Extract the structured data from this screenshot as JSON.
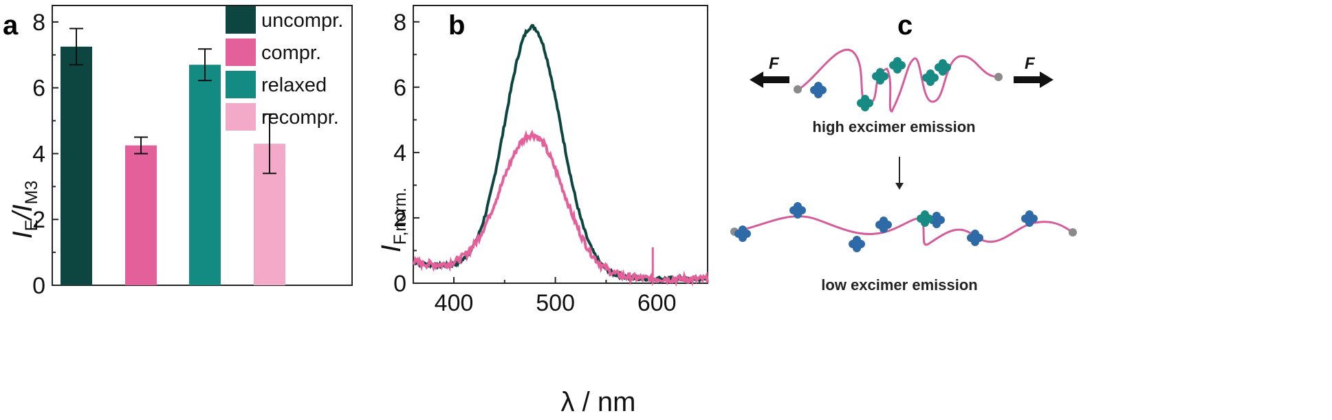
{
  "panels": {
    "a": "a",
    "b": "b",
    "c": "c"
  },
  "chart_data": [
    {
      "type": "bar",
      "panel": "a",
      "ylabel": {
        "main": "I",
        "sub1": "E",
        "slash": "/I",
        "sub2": "M3"
      },
      "ylim": [
        0,
        8.5
      ],
      "yticks": [
        0,
        2,
        4,
        6,
        8
      ],
      "categories": [
        "uncompr.",
        "compr.",
        "relaxed",
        "recompr."
      ],
      "values": [
        7.25,
        4.25,
        6.7,
        4.3
      ],
      "errors": [
        0.55,
        0.25,
        0.48,
        0.9
      ],
      "colors": [
        "#0d4640",
        "#e4609a",
        "#148b82",
        "#f2aac8"
      ],
      "legend": [
        "uncompr.",
        "compr.",
        "relaxed",
        "recompr."
      ],
      "legend_position": "top-right",
      "grid": false
    },
    {
      "type": "line",
      "panel": "b",
      "xlabel": "λ / nm",
      "ylabel": {
        "main": "I",
        "sub": "F,norm."
      },
      "xlim": [
        360,
        650
      ],
      "ylim": [
        0,
        8.5
      ],
      "xticks": [
        400,
        500,
        600
      ],
      "yticks": [
        0,
        2,
        4,
        6,
        8
      ],
      "grid": false,
      "series": [
        {
          "color": "#0d4640",
          "peak_x": 477,
          "peak_y": 7.6,
          "width_left": 38,
          "width_right": 40,
          "baseline": 0.55
        },
        {
          "color": "#e4609a",
          "peak_x": 477,
          "peak_y": 4.3,
          "width_left": 44,
          "width_right": 44,
          "baseline": 0.55
        }
      ]
    }
  ],
  "schematic": {
    "force_label": "F",
    "top_caption": "high excimer emission",
    "bottom_caption": "low excimer emission",
    "colors": {
      "chain": "#d65b9b",
      "monomer": "#2f6aa8",
      "excimer": "#178a83",
      "end": "#8a8a8a"
    }
  }
}
